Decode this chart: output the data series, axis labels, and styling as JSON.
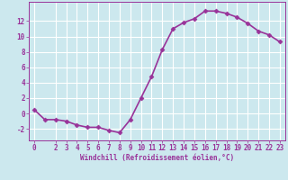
{
  "x": [
    0,
    1,
    2,
    3,
    4,
    5,
    6,
    7,
    8,
    9,
    10,
    11,
    12,
    13,
    14,
    15,
    16,
    17,
    18,
    19,
    20,
    21,
    22,
    23
  ],
  "y": [
    0.5,
    -0.8,
    -0.8,
    -1.0,
    -1.5,
    -1.8,
    -1.8,
    -2.2,
    -2.5,
    -0.8,
    2.0,
    4.8,
    8.3,
    11.0,
    11.8,
    12.3,
    13.3,
    13.3,
    13.0,
    12.5,
    11.7,
    10.7,
    10.2,
    9.3
  ],
  "line_color": "#993399",
  "marker": "D",
  "marker_size": 2.5,
  "bg_color": "#cce8ee",
  "grid_color": "#ffffff",
  "xlabel": "Windchill (Refroidissement éolien,°C)",
  "xlabel_color": "#993399",
  "tick_color": "#993399",
  "ylim": [
    -3.5,
    14.5
  ],
  "xlim": [
    -0.5,
    23.5
  ],
  "yticks": [
    -2,
    0,
    2,
    4,
    6,
    8,
    10,
    12
  ],
  "xticks": [
    0,
    2,
    3,
    4,
    5,
    6,
    7,
    8,
    9,
    10,
    11,
    12,
    13,
    14,
    15,
    16,
    17,
    18,
    19,
    20,
    21,
    22,
    23
  ],
  "linewidth": 1.2,
  "spine_color": "#993399",
  "label_fontsize": 5.5,
  "tick_fontsize": 5.5
}
